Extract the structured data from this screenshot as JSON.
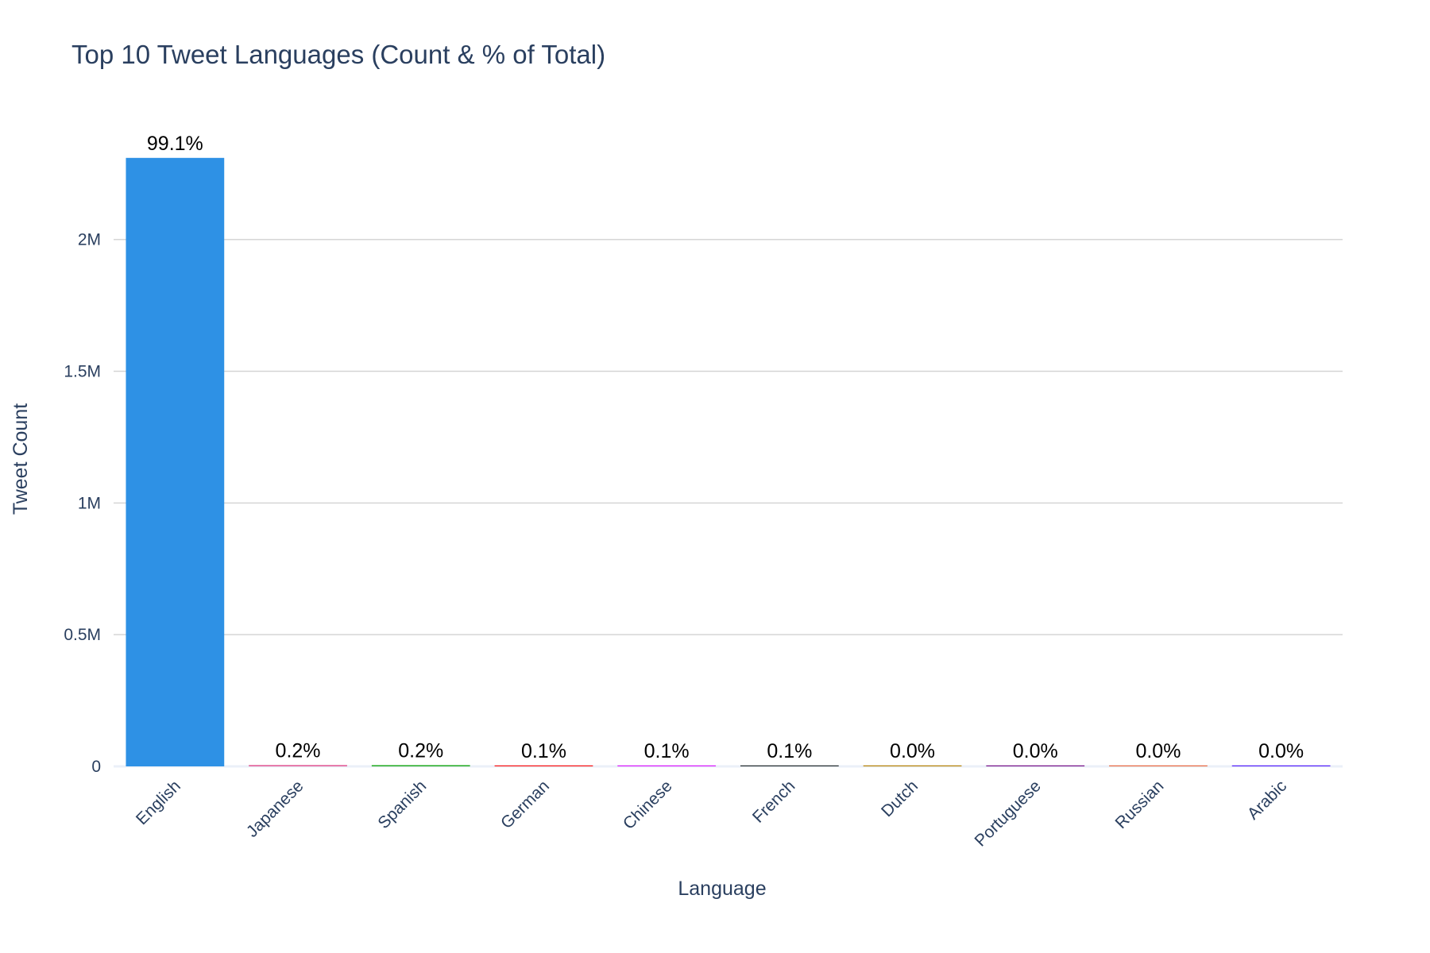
{
  "chart_data": {
    "type": "bar",
    "title": "Top 10 Tweet Languages (Count & % of Total)",
    "xlabel": "Language",
    "ylabel": "Tweet Count",
    "categories": [
      "English",
      "Japanese",
      "Spanish",
      "German",
      "Chinese",
      "French",
      "Dutch",
      "Portuguese",
      "Russian",
      "Arabic"
    ],
    "values": [
      2310000,
      5000,
      4500,
      3000,
      2500,
      2200,
      1100,
      1000,
      900,
      800
    ],
    "data_labels": [
      "99.1%",
      "0.2%",
      "0.2%",
      "0.1%",
      "0.1%",
      "0.1%",
      "0.0%",
      "0.0%",
      "0.0%",
      "0.0%"
    ],
    "colors": [
      "#2e91e5",
      "#e15f99",
      "#1ca71c",
      "#fb0d0d",
      "#da16ff",
      "#222a2a",
      "#b68100",
      "#750d86",
      "#eb663b",
      "#511cfb"
    ],
    "yticks": [
      0,
      500000,
      1000000,
      1500000,
      2000000
    ],
    "ytick_labels": [
      "0",
      "0.5M",
      "1M",
      "1.5M",
      "2M"
    ],
    "ylim": [
      0,
      2430000
    ],
    "grid": true,
    "legend": "none"
  }
}
